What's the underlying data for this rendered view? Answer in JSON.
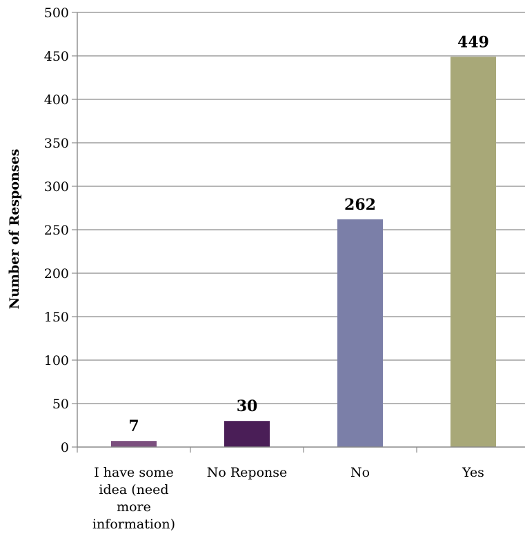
{
  "chart_data": {
    "type": "bar",
    "categories": [
      [
        "I have some",
        "idea (need",
        "more",
        "information)"
      ],
      [
        "No Reponse"
      ],
      [
        "No"
      ],
      [
        "Yes"
      ]
    ],
    "values": [
      7,
      30,
      262,
      449
    ],
    "data_labels": [
      "7",
      "30",
      "262",
      "449"
    ],
    "colors": [
      "#7b4f7e",
      "#4a1e57",
      "#7b7fa8",
      "#a8a878"
    ],
    "ylabel": "Number of Responses",
    "xlabel": "",
    "ylim": [
      0,
      500
    ],
    "yticks": [
      0,
      50,
      100,
      150,
      200,
      250,
      300,
      350,
      400,
      450,
      500
    ],
    "grid": true
  }
}
